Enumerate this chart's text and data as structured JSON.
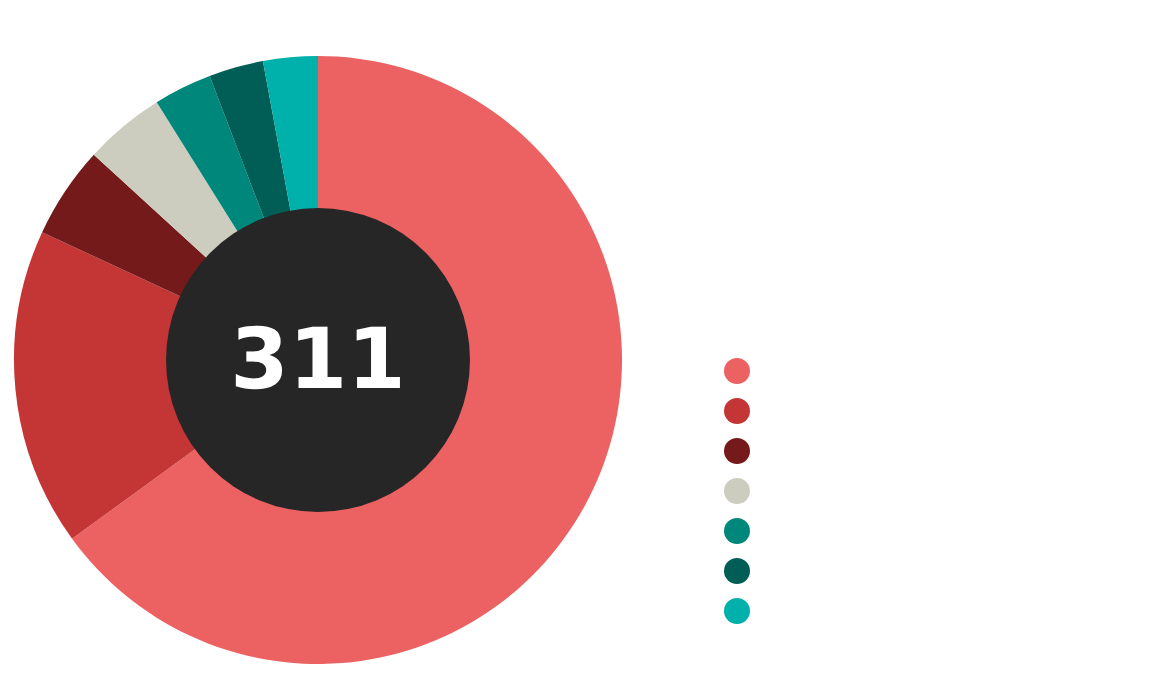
{
  "chart_data": {
    "type": "donut",
    "annotations": [
      "311"
    ],
    "categories": [
      null,
      null,
      null,
      null,
      null,
      null,
      null
    ],
    "values": [
      65,
      16.9,
      4.9,
      4.3,
      3.1,
      2.9,
      2.9
    ],
    "colors": [
      "#ec6262",
      "#c43636",
      "#751a1a",
      "#cccdbf",
      "#00877c",
      "#005e56",
      "#00b0aa"
    ]
  }
}
